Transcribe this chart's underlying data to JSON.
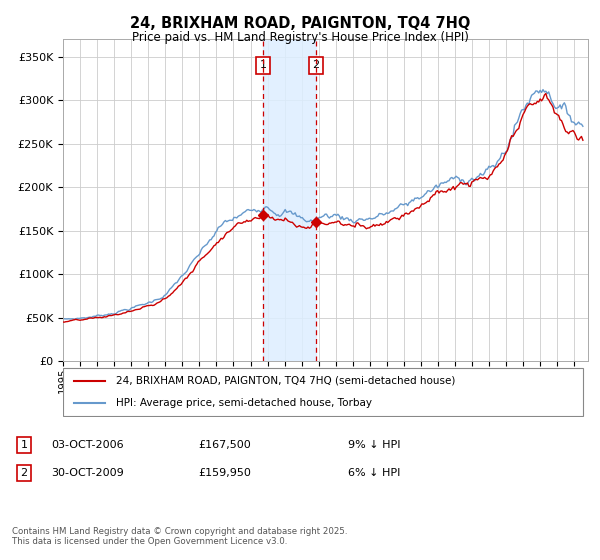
{
  "title": "24, BRIXHAM ROAD, PAIGNTON, TQ4 7HQ",
  "subtitle": "Price paid vs. HM Land Registry's House Price Index (HPI)",
  "ylim": [
    0,
    370000
  ],
  "yticks": [
    0,
    50000,
    100000,
    150000,
    200000,
    250000,
    300000,
    350000
  ],
  "ytick_labels": [
    "£0",
    "£50K",
    "£100K",
    "£150K",
    "£200K",
    "£250K",
    "£300K",
    "£350K"
  ],
  "year_start": 1995,
  "year_end": 2025,
  "sale1": {
    "date": "03-OCT-2006",
    "price": 167500,
    "year": 2006.75,
    "label": "1",
    "pct": "9% ↓ HPI"
  },
  "sale2": {
    "date": "30-OCT-2009",
    "price": 159950,
    "year": 2009.83,
    "label": "2",
    "pct": "6% ↓ HPI"
  },
  "legend_line1": "24, BRIXHAM ROAD, PAIGNTON, TQ4 7HQ (semi-detached house)",
  "legend_line2": "HPI: Average price, semi-detached house, Torbay",
  "footnote": "Contains HM Land Registry data © Crown copyright and database right 2025.\nThis data is licensed under the Open Government Licence v3.0.",
  "red_color": "#cc0000",
  "blue_color": "#6699cc",
  "shade_color": "#ddeeff",
  "background_color": "#ffffff",
  "grid_color": "#cccccc"
}
